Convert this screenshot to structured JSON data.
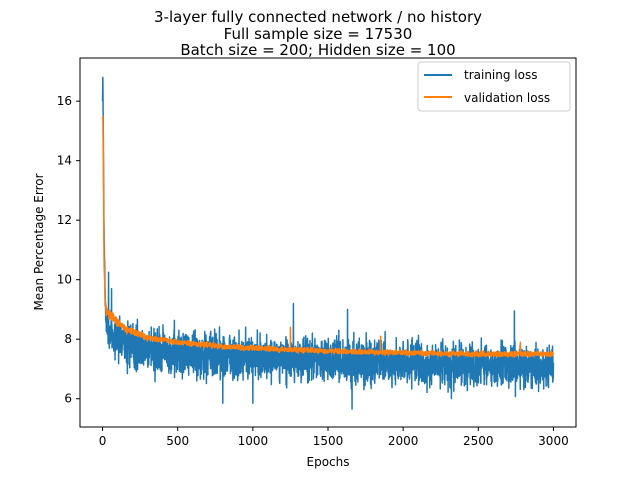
{
  "chart_data": {
    "type": "line",
    "title": [
      "3-layer fully connected network / no history",
      "Full sample size = 17530",
      "Batch size = 200; Hidden size = 100"
    ],
    "xlabel": "Epochs",
    "ylabel": "Mean Percentage Error",
    "xlim": [
      -150,
      3150
    ],
    "ylim": [
      5.05,
      17.45
    ],
    "xticks": [
      0,
      500,
      1000,
      1500,
      2000,
      2500,
      3000
    ],
    "xtick_labels": [
      "0",
      "500",
      "1000",
      "1500",
      "2000",
      "2500",
      "3000"
    ],
    "yticks": [
      6,
      8,
      10,
      12,
      14,
      16
    ],
    "ytick_labels": [
      "6",
      "8",
      "10",
      "12",
      "14",
      "16"
    ],
    "grid": false,
    "legend_position": "top-right",
    "series": [
      {
        "name": "training loss",
        "color": "#1f77b4",
        "x": [
          0,
          2,
          5,
          10,
          20,
          30,
          50,
          80,
          120,
          200,
          300,
          500,
          800,
          1000,
          1500,
          2000,
          2500,
          3000
        ],
        "y": [
          16.0,
          16.8,
          15.0,
          11.5,
          8.6,
          8.4,
          8.2,
          8.0,
          7.9,
          7.75,
          7.7,
          7.55,
          7.45,
          7.4,
          7.3,
          7.2,
          7.1,
          7.1
        ],
        "band": [
          0.0,
          0.0,
          0.0,
          0.5,
          1.0,
          1.1,
          1.15,
          1.15,
          1.1,
          1.05,
          1.0,
          1.0,
          0.95,
          0.95,
          0.95,
          0.95,
          0.9,
          0.9
        ],
        "peaks": [
          {
            "x": 40,
            "y": 10.25
          },
          {
            "x": 60,
            "y": 9.7
          },
          {
            "x": 1270,
            "y": 9.2
          },
          {
            "x": 1630,
            "y": 9.0
          },
          {
            "x": 2740,
            "y": 8.95
          },
          {
            "x": 800,
            "y": 5.85
          },
          {
            "x": 1000,
            "y": 5.85
          },
          {
            "x": 1660,
            "y": 5.65
          }
        ]
      },
      {
        "name": "validation loss",
        "color": "#ff7f0e",
        "x": [
          0,
          2,
          5,
          10,
          20,
          40,
          80,
          150,
          300,
          500,
          800,
          1000,
          1500,
          2000,
          2500,
          3000
        ],
        "y": [
          15.4,
          15.5,
          14.0,
          10.5,
          9.0,
          8.9,
          8.65,
          8.35,
          8.05,
          7.9,
          7.75,
          7.7,
          7.6,
          7.55,
          7.5,
          7.5
        ],
        "band": [
          0.0,
          0.0,
          0.0,
          0.2,
          0.25,
          0.25,
          0.22,
          0.2,
          0.15,
          0.12,
          0.12,
          0.12,
          0.12,
          0.12,
          0.12,
          0.12
        ],
        "peaks": [
          {
            "x": 1250,
            "y": 8.4
          },
          {
            "x": 1850,
            "y": 8.1
          },
          {
            "x": 2780,
            "y": 7.9
          }
        ]
      }
    ]
  }
}
